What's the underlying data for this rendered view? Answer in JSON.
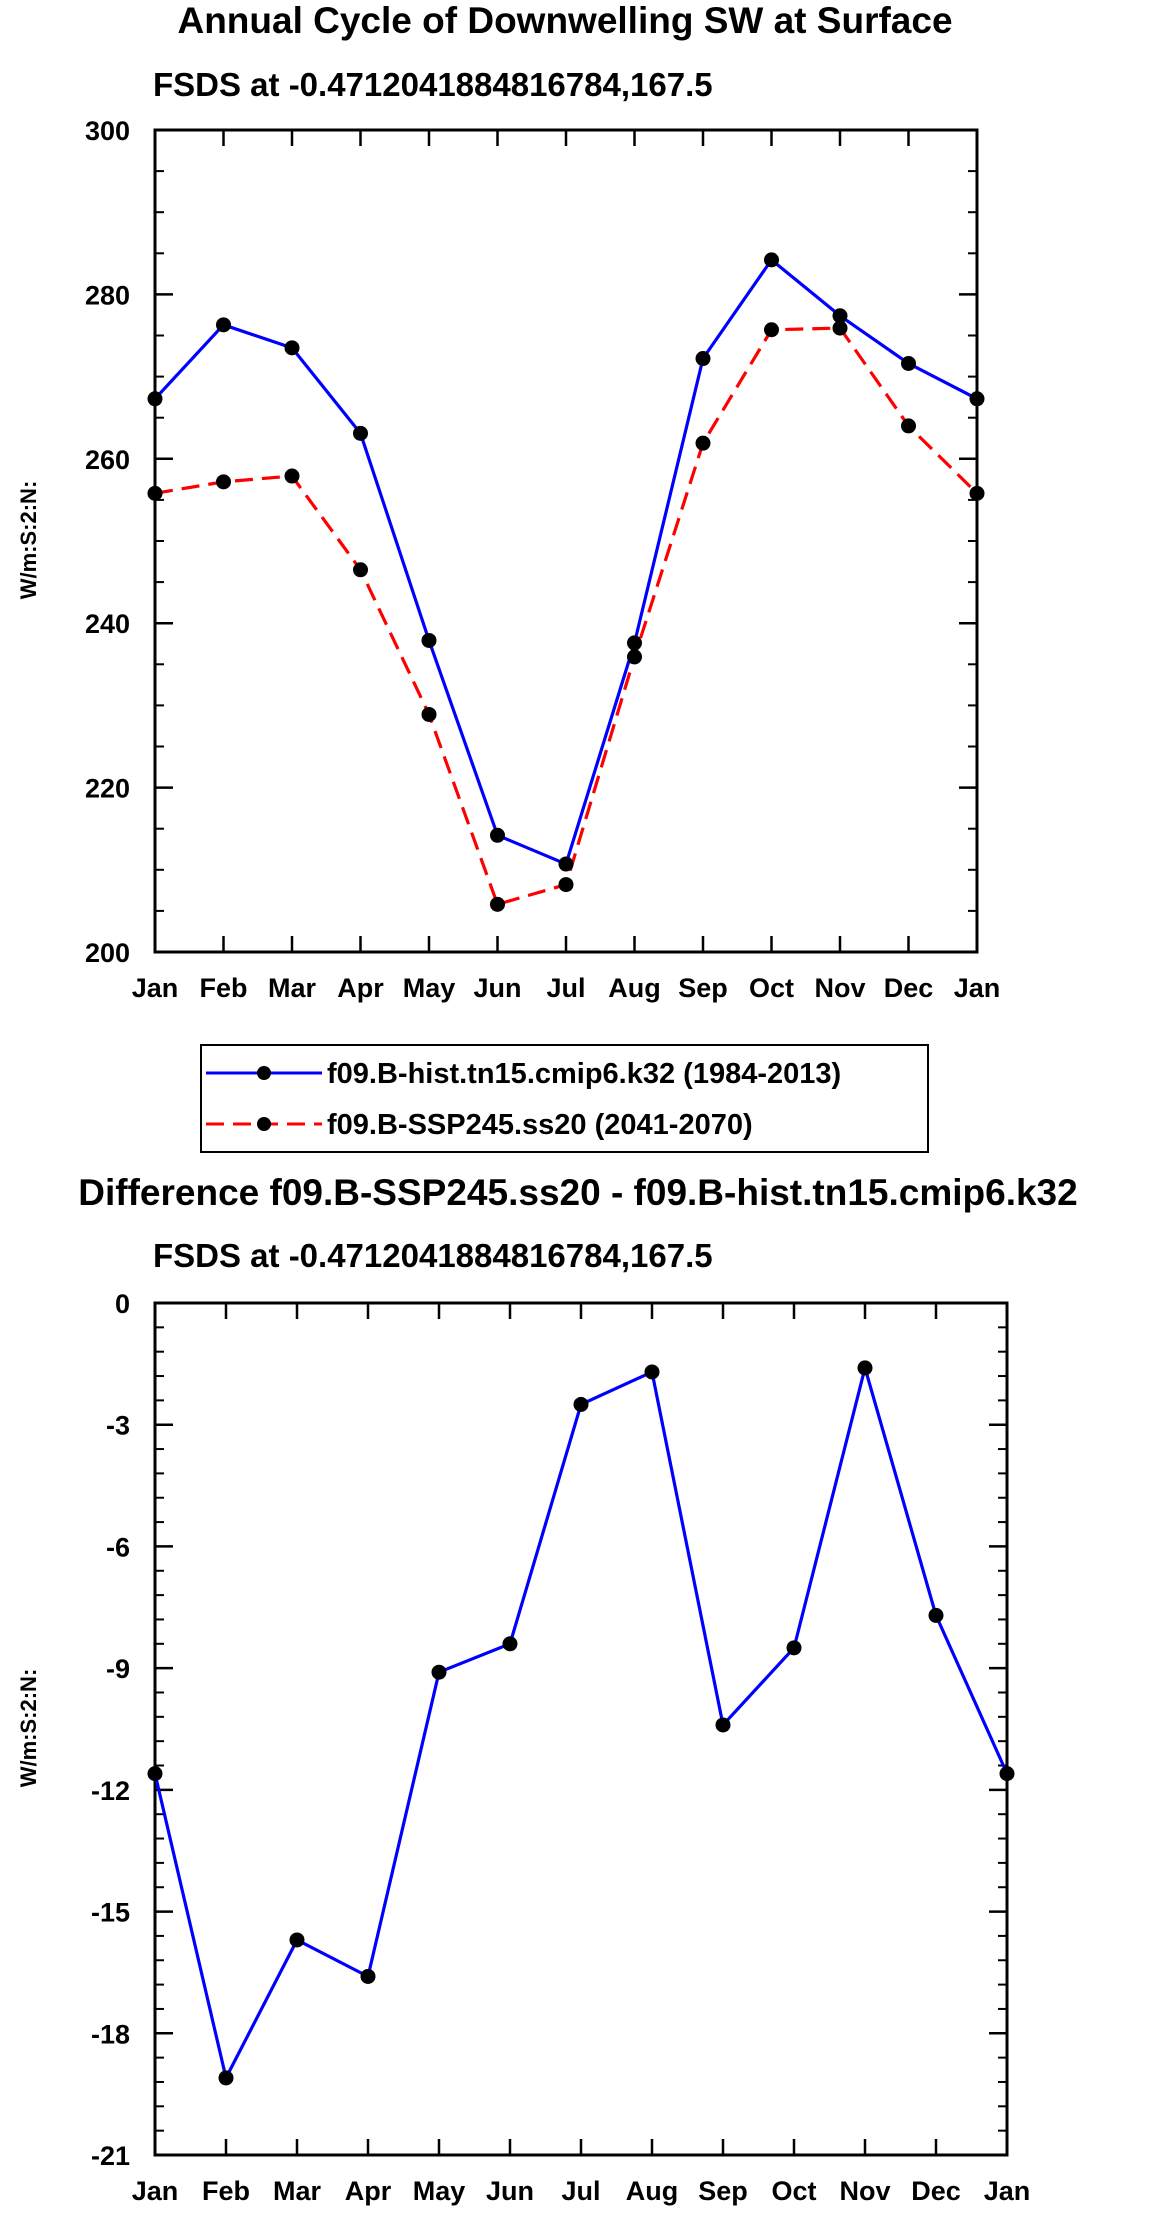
{
  "chart_data": [
    {
      "type": "line",
      "title": "Annual Cycle of Downwelling SW at Surface",
      "subtitle": "FSDS at -0.4712041884816784,167.5",
      "xlabel": "",
      "ylabel": "W/m:S:2:N:",
      "categories": [
        "Jan",
        "Feb",
        "Mar",
        "Apr",
        "May",
        "Jun",
        "Jul",
        "Aug",
        "Sep",
        "Oct",
        "Nov",
        "Dec",
        "Jan"
      ],
      "ylim": [
        200,
        300
      ],
      "yticks": [
        200,
        220,
        240,
        260,
        280,
        300
      ],
      "series": [
        {
          "name": "f09.B-hist.tn15.cmip6.k32 (1984-2013)",
          "color": "#0000ff",
          "dash": "solid",
          "values": [
            267.3,
            276.3,
            273.5,
            263.1,
            237.9,
            214.2,
            210.7,
            237.6,
            272.2,
            284.2,
            277.4,
            271.6,
            267.3
          ]
        },
        {
          "name": "f09.B-SSP245.ss20 (2041-2070)",
          "color": "#ff0000",
          "dash": "dashed",
          "values": [
            255.8,
            257.2,
            257.9,
            246.5,
            228.9,
            205.8,
            208.2,
            235.9,
            261.9,
            275.7,
            275.9,
            264.0,
            255.8
          ]
        }
      ],
      "legend_location": "bottom-center"
    },
    {
      "type": "line",
      "title": "Difference f09.B-SSP245.ss20 - f09.B-hist.tn15.cmip6.k32",
      "subtitle": "FSDS at -0.4712041884816784,167.5",
      "xlabel": "",
      "ylabel": "W/m:S:2:N:",
      "categories": [
        "Jan",
        "Feb",
        "Mar",
        "Apr",
        "May",
        "Jun",
        "Jul",
        "Aug",
        "Sep",
        "Oct",
        "Nov",
        "Dec",
        "Jan"
      ],
      "ylim": [
        -21,
        0
      ],
      "yticks": [
        -21,
        -18,
        -15,
        -12,
        -9,
        -6,
        -3,
        0
      ],
      "series": [
        {
          "name": "Difference",
          "color": "#0000ff",
          "dash": "solid",
          "values": [
            -11.6,
            -19.1,
            -15.7,
            -16.6,
            -9.1,
            -8.4,
            -2.5,
            -1.7,
            -10.4,
            -8.5,
            -1.6,
            -7.7,
            -11.6
          ]
        }
      ]
    }
  ]
}
